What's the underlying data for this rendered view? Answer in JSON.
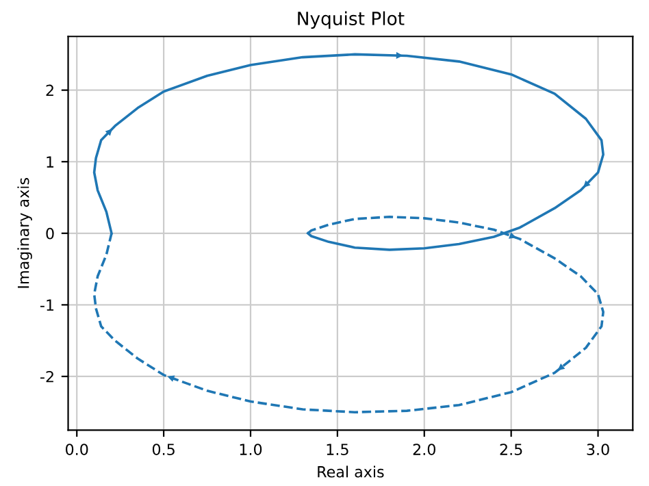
{
  "chart_data": {
    "type": "line",
    "title": "Nyquist Plot",
    "xlabel": "Real axis",
    "ylabel": "Imaginary axis",
    "series": [
      {
        "color": "#1f77b4",
        "line_style": "solid",
        "x": [
          0.2,
          0.17,
          0.12,
          0.1,
          0.11,
          0.14,
          0.22,
          0.35,
          0.5,
          0.75,
          1.0,
          1.3,
          1.6,
          1.9,
          2.2,
          2.5,
          2.75,
          2.93,
          3.02,
          3.03,
          3.0,
          2.9,
          2.75,
          2.55,
          2.4,
          2.2,
          2.0,
          1.8,
          1.6,
          1.45,
          1.35,
          1.33
        ],
        "values": [
          0,
          0.3,
          0.6,
          0.85,
          1.05,
          1.3,
          1.5,
          1.75,
          1.98,
          2.2,
          2.35,
          2.46,
          2.5,
          2.48,
          2.4,
          2.22,
          1.95,
          1.6,
          1.3,
          1.1,
          0.85,
          0.6,
          0.35,
          0.08,
          -0.05,
          -0.15,
          -0.21,
          -0.23,
          -0.2,
          -0.12,
          -0.04,
          0
        ]
      },
      {
        "color": "#1f77b4",
        "line_style": "dashed",
        "x": [
          1.33,
          1.35,
          1.45,
          1.6,
          1.8,
          2.0,
          2.2,
          2.4,
          2.55,
          2.75,
          2.9,
          3.0,
          3.03,
          3.02,
          2.93,
          2.75,
          2.5,
          2.2,
          1.9,
          1.6,
          1.3,
          1.0,
          0.75,
          0.5,
          0.35,
          0.22,
          0.14,
          0.11,
          0.1,
          0.12,
          0.17,
          0.2
        ],
        "values": [
          0,
          0.04,
          0.12,
          0.2,
          0.23,
          0.21,
          0.15,
          0.05,
          -0.08,
          -0.35,
          -0.6,
          -0.85,
          -1.1,
          -1.3,
          -1.6,
          -1.95,
          -2.22,
          -2.4,
          -2.48,
          -2.5,
          -2.46,
          -2.35,
          -2.2,
          -1.98,
          -1.75,
          -1.5,
          -1.3,
          -1.05,
          -0.85,
          -0.6,
          -0.3,
          0
        ]
      }
    ],
    "xlim": [
      -0.05,
      3.2
    ],
    "ylim": [
      -2.75,
      2.75
    ],
    "xticks": [
      {
        "value": 0,
        "label": "0.0"
      },
      0.5,
      {
        "value": 1,
        "label": "1.0"
      },
      1.5,
      {
        "value": 2,
        "label": "2.0"
      },
      2.5,
      {
        "value": 3,
        "label": "3.0"
      }
    ],
    "yticks": [
      -2,
      -1,
      0,
      1,
      2
    ],
    "grid": true,
    "legend": false
  }
}
